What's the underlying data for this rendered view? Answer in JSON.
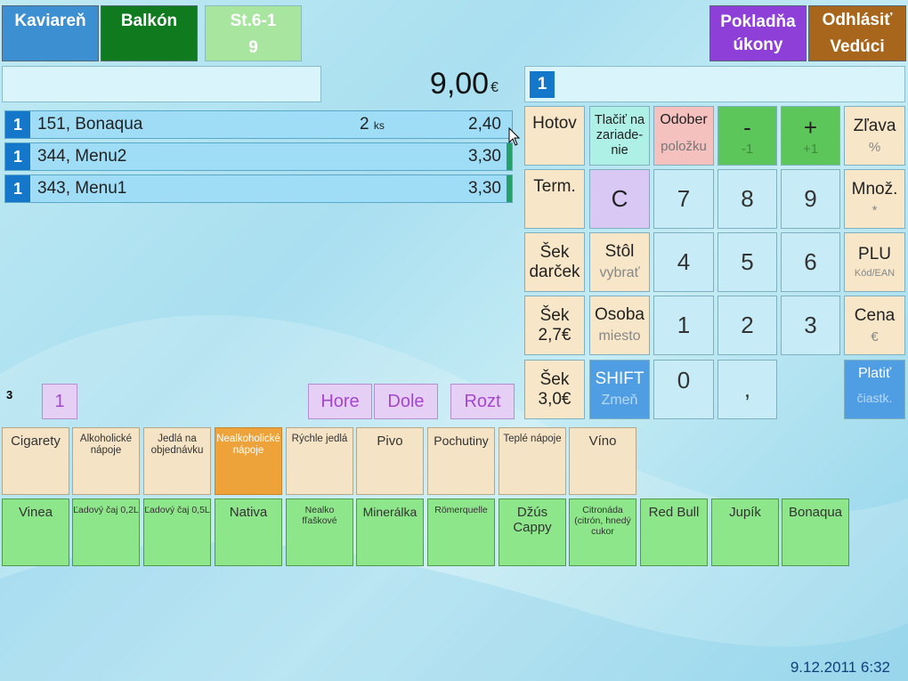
{
  "header": {
    "kaviaren": "Kaviareň",
    "balkon": "Balkón",
    "table_line1": "St.6-1",
    "table_line2": "9",
    "pokladna_line1": "Pokladňa",
    "pokladna_line2": "úkony",
    "odhlasit_line1": "Odhlásiť",
    "odhlasit_line2": "Vedúci"
  },
  "order": {
    "total": "9,00",
    "currency": "€",
    "input_value": "",
    "items": [
      {
        "num": "1",
        "name": "151, Bonaqua",
        "qty": "2",
        "unit": "ks",
        "price": "2,40"
      },
      {
        "num": "1",
        "name": "344, Menu2",
        "qty": "",
        "unit": "",
        "price": "3,30"
      },
      {
        "num": "1",
        "name": "343, Menu1",
        "qty": "",
        "unit": "",
        "price": "3,30"
      }
    ],
    "count": "3",
    "page": "1"
  },
  "entry": {
    "value": "1"
  },
  "nav": {
    "hore": "Hore",
    "dole": "Dole",
    "rozt": "Rozt"
  },
  "actions": {
    "hotov": "Hotov",
    "tlacit": "Tlačiť na zariade-nie",
    "odober": "Odober",
    "odober_sub": "položku",
    "minus": "-",
    "minus_sub": "-1",
    "plus": "+",
    "plus_sub": "+1",
    "zlava": "Zľava",
    "zlava_sub": "%",
    "term": "Term.",
    "clear": "C",
    "mnoz": "Množ.",
    "mnoz_sub": "*",
    "sek_darcek": "Šek darček",
    "stol": "Stôl",
    "stol_sub": "vybrať",
    "plu": "PLU",
    "plu_sub": "Kód/EAN",
    "sek27": "Šek 2,7€",
    "osoba": "Osoba",
    "osoba_sub": "miesto",
    "cena": "Cena",
    "cena_sub": "€",
    "sek30": "Šek 3,0€",
    "shift": "SHIFT",
    "shift_sub": "Zmeň",
    "comma": ",",
    "platit": "Platiť",
    "platit_sub": "čiastk."
  },
  "keys": {
    "k7": "7",
    "k8": "8",
    "k9": "9",
    "k4": "4",
    "k5": "5",
    "k6": "6",
    "k1": "1",
    "k2": "2",
    "k3": "3",
    "k0": "0"
  },
  "categories": [
    "Cigarety",
    "Alkoholické nápoje",
    "Jedlá na objednávku",
    "Nealkoholické nápoje",
    "Rýchle jedlá",
    "Pivo",
    "Pochutiny",
    "Teplé nápoje",
    "Víno"
  ],
  "products": [
    "Vinea",
    "Ľadový čaj 0,2L",
    "Ľadový čaj 0,5L",
    "Nativa",
    "Nealko fľaškové",
    "Minerálka",
    "Römerquelle",
    "Džús Cappy",
    "Citronáda (citrón, hnedý cukor",
    "Red Bull",
    "Jupík",
    "Bonaqua"
  ],
  "status": {
    "datetime": "9.12.2011 6:32"
  },
  "colors": {
    "blue": "#3c8fd0",
    "green_dark": "#0f7a1e",
    "green_light": "#a8e6a0",
    "purple": "#8e3fd8",
    "brown": "#a8661c",
    "orange_active": "#eda33a",
    "product_green": "#8ee68a"
  }
}
